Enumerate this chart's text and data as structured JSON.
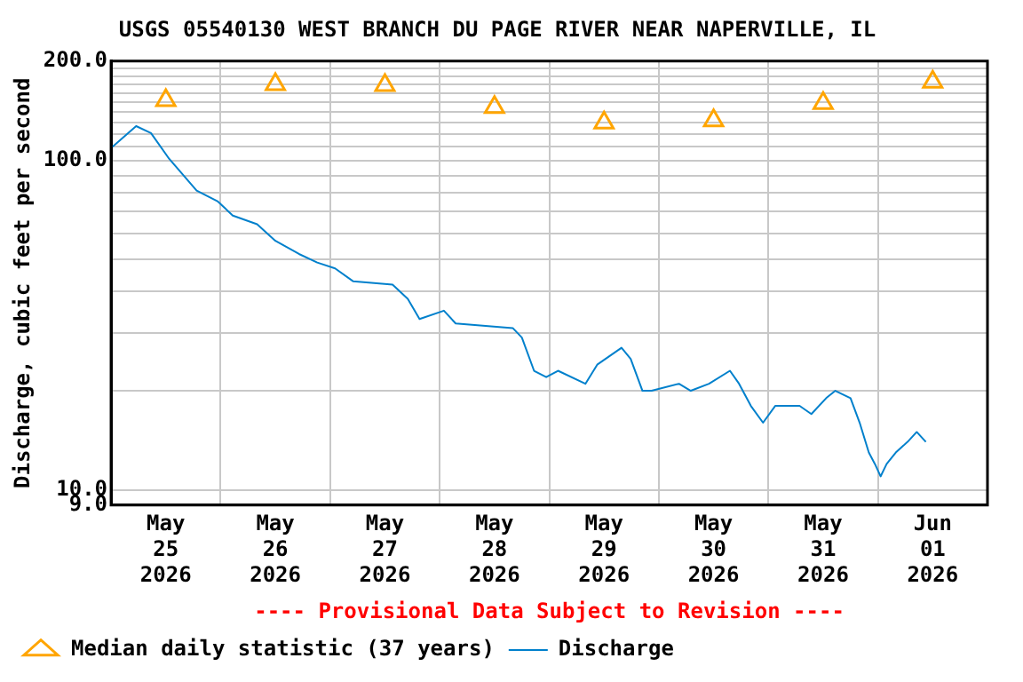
{
  "chart_data": {
    "type": "line",
    "title": "USGS 05540130 WEST BRANCH DU PAGE RIVER NEAR NAPERVILLE, IL",
    "ylabel": "Discharge, cubic feet per second",
    "annotations": [
      "---- Provisional Data Subject to Revision ----"
    ],
    "log": "y",
    "grid": true,
    "legend": "bottom",
    "xlim": [
      "2026-05-25T00:00",
      "2026-06-02T00:00"
    ],
    "xticks": [
      {
        "value": "2026-05-25T00:00",
        "label": null
      },
      {
        "value": "2026-05-25T12:00",
        "label": "May\n25\n2026"
      },
      {
        "value": "2026-05-26T00:00",
        "label": null
      },
      {
        "value": "2026-05-26T12:00",
        "label": "May\n26\n2026"
      },
      {
        "value": "2026-05-27T00:00",
        "label": null
      },
      {
        "value": "2026-05-27T12:00",
        "label": "May\n27\n2026"
      },
      {
        "value": "2026-05-28T00:00",
        "label": null
      },
      {
        "value": "2026-05-28T12:00",
        "label": "May\n28\n2026"
      },
      {
        "value": "2026-05-29T00:00",
        "label": null
      },
      {
        "value": "2026-05-29T12:00",
        "label": "May\n29\n2026"
      },
      {
        "value": "2026-05-30T00:00",
        "label": null
      },
      {
        "value": "2026-05-30T12:00",
        "label": "May\n30\n2026"
      },
      {
        "value": "2026-05-31T00:00",
        "label": null
      },
      {
        "value": "2026-05-31T12:00",
        "label": "May\n31\n2026"
      },
      {
        "value": "2026-06-01T00:00",
        "label": null
      },
      {
        "value": "2026-06-01T12:00",
        "label": "Jun\n01\n2026"
      }
    ],
    "ylim": [
      9,
      200
    ],
    "yticks": [
      {
        "value": 9,
        "label": "9.0"
      },
      {
        "value": 10,
        "label": "10.0"
      },
      {
        "value": 20,
        "label": null
      },
      {
        "value": 30,
        "label": null
      },
      {
        "value": 40,
        "label": null
      },
      {
        "value": 50,
        "label": null
      },
      {
        "value": 60,
        "label": null
      },
      {
        "value": 70,
        "label": null
      },
      {
        "value": 80,
        "label": null
      },
      {
        "value": 90,
        "label": null
      },
      {
        "value": 100,
        "label": "100.0"
      },
      {
        "value": 110,
        "label": null
      },
      {
        "value": 120,
        "label": null
      },
      {
        "value": 130,
        "label": null
      },
      {
        "value": 140,
        "label": null
      },
      {
        "value": 150,
        "label": null
      },
      {
        "value": 160,
        "label": null
      },
      {
        "value": 170,
        "label": null
      },
      {
        "value": 180,
        "label": null
      },
      {
        "value": 190,
        "label": null
      },
      {
        "value": 200,
        "label": "200.0"
      }
    ],
    "series": [
      {
        "name": "Median daily statistic (37 years)",
        "type": "scatter",
        "marker": "triangle",
        "color": "#ffa500",
        "x": [
          "2026-05-25T12:00",
          "2026-05-26T12:00",
          "2026-05-27T12:00",
          "2026-05-28T12:00",
          "2026-05-29T12:00",
          "2026-05-30T12:00",
          "2026-05-31T12:00",
          "2026-06-01T12:00"
        ],
        "values": [
          152,
          170,
          169,
          145,
          130,
          132,
          149,
          173
        ]
      },
      {
        "name": "Discharge",
        "marker": "none",
        "color": "#0080cc",
        "x": [
          "2026-05-25T00:20",
          "2026-05-25T05:30",
          "2026-05-25T08:45",
          "2026-05-25T12:45",
          "2026-05-25T18:45",
          "2026-05-25T23:25",
          "2026-05-26T02:40",
          "2026-05-26T08:00",
          "2026-05-26T12:00",
          "2026-05-26T17:10",
          "2026-05-26T21:10",
          "2026-05-27T01:05",
          "2026-05-27T05:00",
          "2026-05-27T13:40",
          "2026-05-27T17:00",
          "2026-05-27T19:35",
          "2026-05-28T00:55",
          "2026-05-28T03:30",
          "2026-05-28T16:00",
          "2026-05-28T18:00",
          "2026-05-28T20:40",
          "2026-05-28T23:20",
          "2026-05-29T01:55",
          "2026-05-29T07:55",
          "2026-05-29T10:30",
          "2026-05-29T15:50",
          "2026-05-29T17:50",
          "2026-05-29T20:25",
          "2026-05-29T22:25",
          "2026-05-30T04:25",
          "2026-05-30T07:00",
          "2026-05-30T11:00",
          "2026-05-30T15:35",
          "2026-05-30T17:35",
          "2026-05-30T20:10",
          "2026-05-30T22:50",
          "2026-05-31T01:30",
          "2026-05-31T06:50",
          "2026-05-31T09:25",
          "2026-05-31T12:40",
          "2026-05-31T14:40",
          "2026-05-31T18:00",
          "2026-05-31T20:00",
          "2026-05-31T22:00",
          "2026-05-31T23:20",
          "2026-06-01T00:35",
          "2026-06-01T01:55",
          "2026-06-01T03:55",
          "2026-06-01T06:30",
          "2026-06-01T08:30",
          "2026-06-01T10:30"
        ],
        "values": [
          110,
          127,
          121,
          101,
          81,
          75,
          68,
          64,
          57,
          52,
          49,
          47,
          43,
          42,
          38,
          33,
          35,
          32,
          31,
          29,
          23,
          22,
          23,
          21,
          24,
          27,
          25,
          20,
          20,
          21,
          20,
          21,
          23,
          21,
          18,
          16,
          18,
          18,
          17,
          19,
          20,
          19,
          16,
          13,
          12,
          11,
          12,
          13,
          14,
          15,
          14
        ]
      }
    ]
  }
}
